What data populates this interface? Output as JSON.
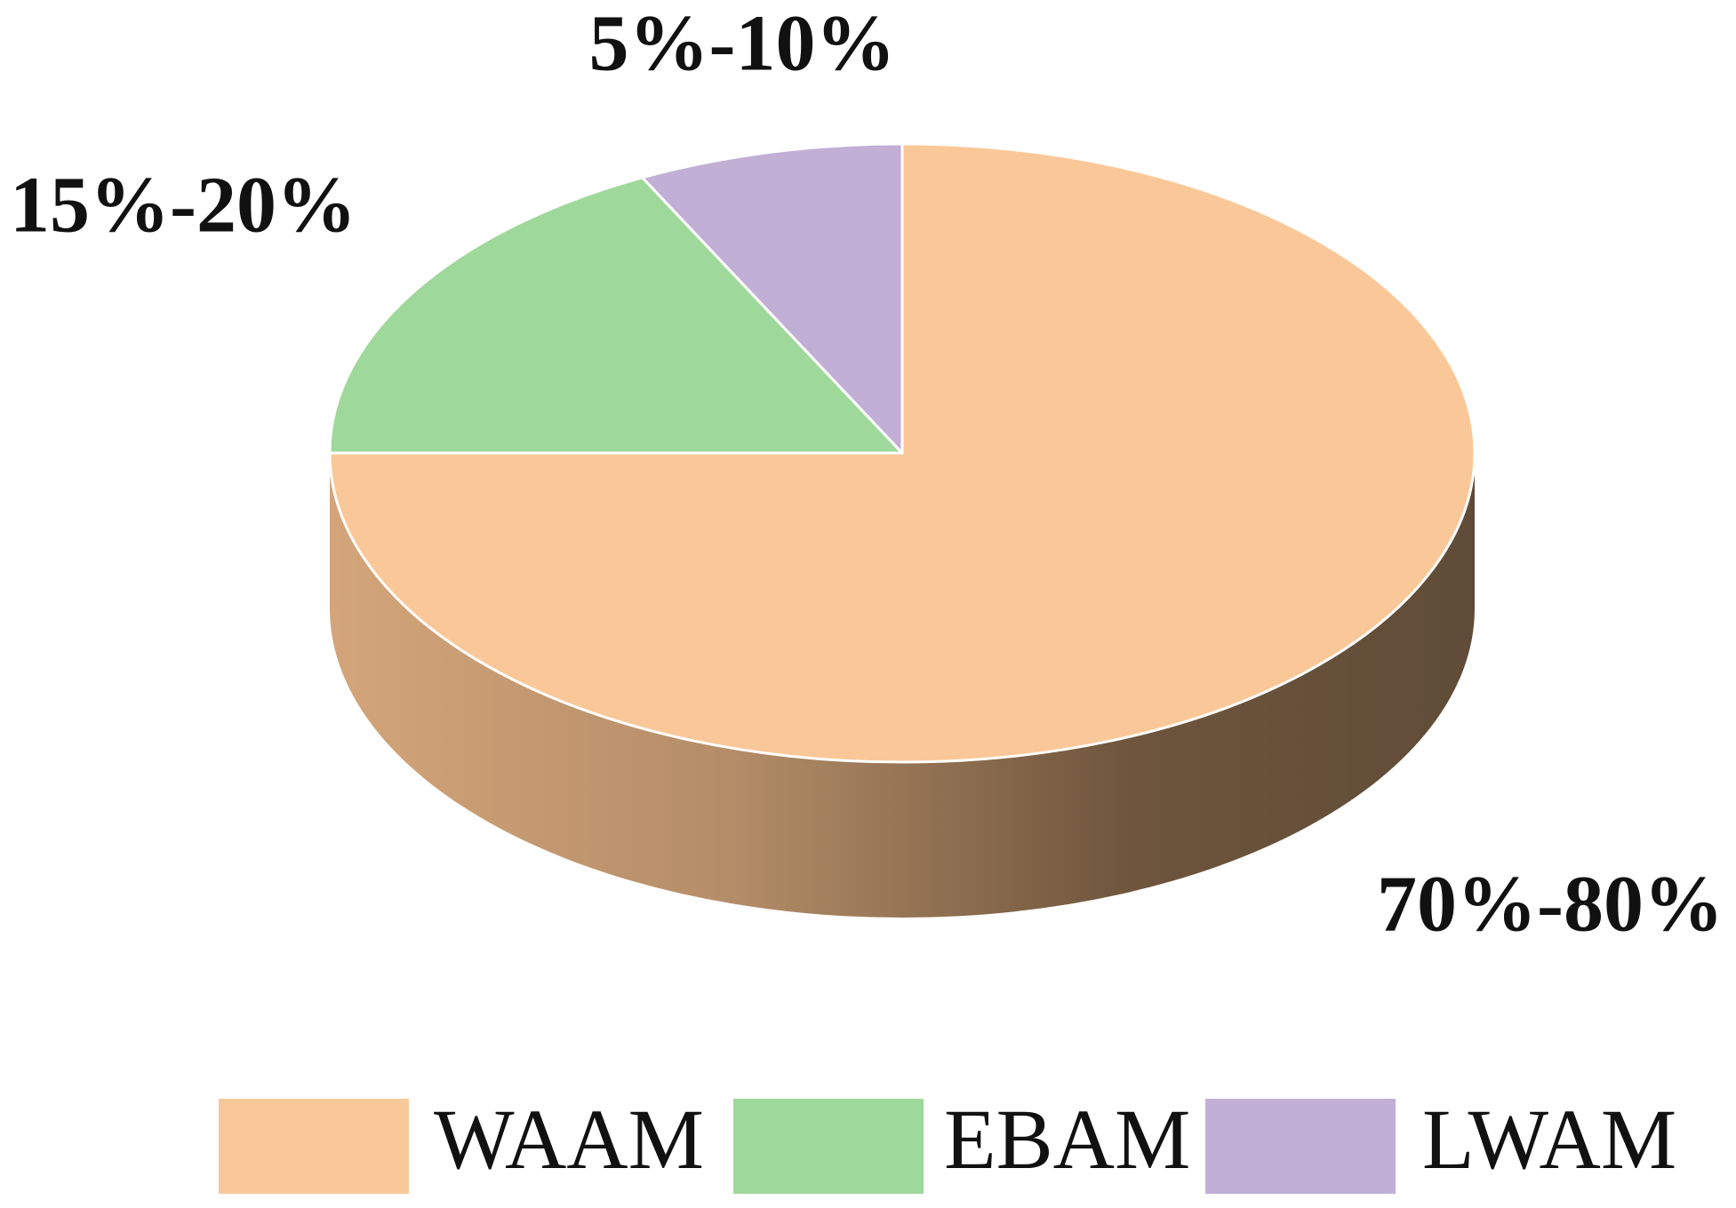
{
  "chart_data": {
    "type": "pie3d",
    "categories": [
      "WAAM",
      "EBAM",
      "LWAM"
    ],
    "values": [
      75,
      17.5,
      7.5
    ],
    "value_labels": [
      "70%-80%",
      "15%-20%",
      "5%-10%"
    ],
    "colors": [
      "#fac898",
      "#9fd89b",
      "#c1afd5"
    ],
    "legend": "bottom"
  }
}
